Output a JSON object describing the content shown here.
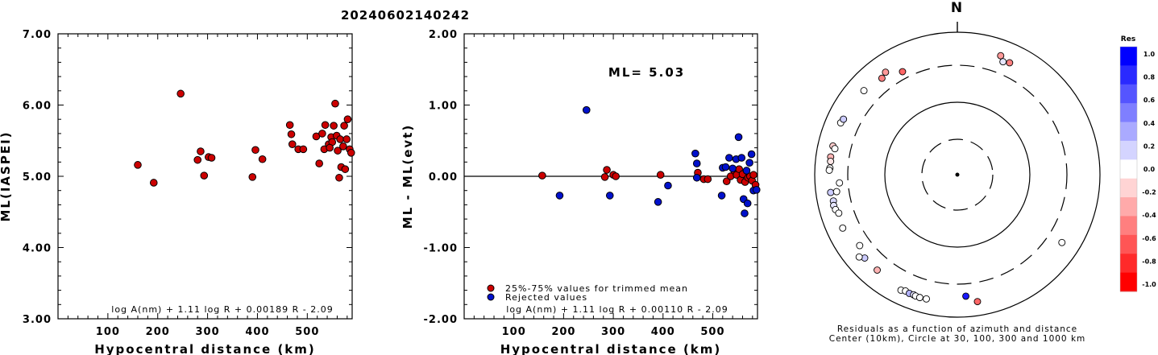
{
  "title": "20240602140242",
  "chart_data": [
    {
      "type": "scatter",
      "ylabel": "ML(IASPEI)",
      "xlabel": "Hypocentral distance (km)",
      "xlim": [
        0,
        590
      ],
      "ylim": [
        3.0,
        7.0
      ],
      "x_ticks": [
        100,
        200,
        300,
        400,
        500
      ],
      "y_ticks": [
        "3.00",
        "4.00",
        "5.00",
        "6.00",
        "7.00"
      ],
      "formula": "log A(nm) + 1.11 log R + 0.00189 R - 2.09",
      "series": [
        {
          "color": "#cc0000",
          "points": [
            [
              160,
              5.16
            ],
            [
              192,
              4.91
            ],
            [
              246,
              6.16
            ],
            [
              280,
              5.23
            ],
            [
              286,
              5.35
            ],
            [
              293,
              5.01
            ],
            [
              302,
              5.27
            ],
            [
              308,
              5.26
            ],
            [
              390,
              4.99
            ],
            [
              396,
              5.37
            ],
            [
              410,
              5.24
            ],
            [
              465,
              5.72
            ],
            [
              468,
              5.59
            ],
            [
              470,
              5.45
            ],
            [
              482,
              5.38
            ],
            [
              492,
              5.38
            ],
            [
              518,
              5.56
            ],
            [
              524,
              5.18
            ],
            [
              530,
              5.6
            ],
            [
              536,
              5.72
            ],
            [
              534,
              5.38
            ],
            [
              543,
              5.45
            ],
            [
              548,
              5.55
            ],
            [
              553,
              5.71
            ],
            [
              556,
              6.02
            ],
            [
              559,
              5.57
            ],
            [
              561,
              5.36
            ],
            [
              564,
              4.98
            ],
            [
              566,
              5.52
            ],
            [
              568,
              5.13
            ],
            [
              572,
              5.42
            ],
            [
              574,
              5.71
            ],
            [
              576,
              5.1
            ],
            [
              579,
              5.52
            ],
            [
              581,
              5.8
            ],
            [
              585,
              5.38
            ],
            [
              588,
              5.33
            ],
            [
              550,
              5.48
            ],
            [
              545,
              5.4
            ]
          ]
        }
      ]
    },
    {
      "type": "scatter",
      "ylabel": "ML - ML(evt)",
      "xlabel": "Hypocentral distance (km)",
      "xlim": [
        0,
        590
      ],
      "ylim": [
        -2.0,
        2.0
      ],
      "x_ticks": [
        100,
        200,
        300,
        400,
        500
      ],
      "y_ticks": [
        "-2.00",
        "-1.00",
        "0.00",
        "1.00",
        "2.00"
      ],
      "annotation": "ML= 5.03",
      "formula": "log A(nm) + 1.11 log R + 0.00110 R - 2.09",
      "series": [
        {
          "name": "25%-75% values for trimmed mean",
          "color": "#cc0000",
          "points": [
            [
              157,
              0.01
            ],
            [
              287,
              0.09
            ],
            [
              283,
              -0.01
            ],
            [
              300,
              0.02
            ],
            [
              305,
              0.0
            ],
            [
              395,
              0.02
            ],
            [
              470,
              0.05
            ],
            [
              482,
              -0.04
            ],
            [
              490,
              -0.04
            ],
            [
              528,
              -0.07
            ],
            [
              536,
              0.0
            ],
            [
              543,
              0.08
            ],
            [
              548,
              0.02
            ],
            [
              553,
              0.1
            ],
            [
              556,
              -0.05
            ],
            [
              560,
              0.03
            ],
            [
              565,
              -0.08
            ],
            [
              571,
              -0.02
            ],
            [
              575,
              0.0
            ],
            [
              579,
              -0.06
            ],
            [
              582,
              0.02
            ],
            [
              586,
              -0.12
            ]
          ]
        },
        {
          "name": "Rejected values",
          "color": "#0011cc",
          "points": [
            [
              246,
              0.93
            ],
            [
              192,
              -0.27
            ],
            [
              293,
              -0.27
            ],
            [
              390,
              -0.36
            ],
            [
              410,
              -0.13
            ],
            [
              465,
              0.32
            ],
            [
              468,
              0.18
            ],
            [
              468,
              -0.02
            ],
            [
              518,
              -0.27
            ],
            [
              520,
              0.12
            ],
            [
              526,
              0.13
            ],
            [
              533,
              0.26
            ],
            [
              540,
              0.11
            ],
            [
              547,
              0.24
            ],
            [
              552,
              0.55
            ],
            [
              558,
              0.26
            ],
            [
              562,
              -0.32
            ],
            [
              564,
              -0.52
            ],
            [
              568,
              0.08
            ],
            [
              570,
              -0.38
            ],
            [
              578,
              0.31
            ],
            [
              582,
              -0.2
            ],
            [
              588,
              -0.19
            ],
            [
              574,
              0.19
            ]
          ]
        }
      ]
    },
    {
      "type": "scatter",
      "subtype": "polar",
      "north_label": "N",
      "caption_line1": "Residuals as a function of azimuth and distance",
      "caption_line2": "Center (10km), Circle at 30, 100, 300 and 1000 km",
      "ring_radii_px": [],
      "colorbar": {
        "label": "Res",
        "ticks": [
          "1.0",
          "0.8",
          "0.6",
          "0.4",
          "0.2",
          "0.0",
          "-0.2",
          "-0.4",
          "-0.6",
          "-0.8",
          "-1.0"
        ],
        "colors": [
          "#0000ff",
          "#2a2aff",
          "#5555ff",
          "#7f7fff",
          "#aaaaff",
          "#d4d4ff",
          "#ffffff",
          "#ffd4d4",
          "#ffaaaa",
          "#ff7f7f",
          "#ff5555",
          "#ff2a2a",
          "#ff0000"
        ]
      },
      "points": [
        {
          "az": 20,
          "dist_km": 560,
          "res": -0.4
        },
        {
          "az": 22,
          "dist_km": 470,
          "res": 0.1
        },
        {
          "az": 25,
          "dist_km": 500,
          "res": -0.5
        },
        {
          "az": 332,
          "dist_km": 390,
          "res": -0.6
        },
        {
          "az": 322,
          "dist_km": 480,
          "res": -0.5
        },
        {
          "az": 325,
          "dist_km": 530,
          "res": -0.4
        },
        {
          "az": 312,
          "dist_km": 540,
          "res": 0.0
        },
        {
          "az": 294,
          "dist_km": 580,
          "res": 0.0
        },
        {
          "az": 296,
          "dist_km": 560,
          "res": 0.2
        },
        {
          "az": 283,
          "dist_km": 580,
          "res": -0.2
        },
        {
          "az": 278,
          "dist_km": 585,
          "res": -0.3
        },
        {
          "az": 276,
          "dist_km": 575,
          "res": -0.1
        },
        {
          "az": 273,
          "dist_km": 578,
          "res": 0.0
        },
        {
          "az": 272,
          "dist_km": 590,
          "res": 0.0
        },
        {
          "az": 282,
          "dist_km": 530,
          "res": 0.0
        },
        {
          "az": 262,
          "dist_km": 585,
          "res": 0.2
        },
        {
          "az": 258,
          "dist_km": 560,
          "res": 0.15
        },
        {
          "az": 256,
          "dist_km": 575,
          "res": 0.1
        },
        {
          "az": 254,
          "dist_km": 560,
          "res": 0.0
        },
        {
          "az": 252,
          "dist_km": 520,
          "res": 0.0
        },
        {
          "az": 262,
          "dist_km": 470,
          "res": 0.0
        },
        {
          "az": 266,
          "dist_km": 410,
          "res": 0.0
        },
        {
          "az": 245,
          "dist_km": 555,
          "res": 0.0
        },
        {
          "az": 234,
          "dist_km": 450,
          "res": 0.0
        },
        {
          "az": 228,
          "dist_km": 520,
          "res": 0.2
        },
        {
          "az": 220,
          "dist_km": 520,
          "res": -0.3
        },
        {
          "az": 206,
          "dist_km": 600,
          "res": 0.0
        },
        {
          "az": 204,
          "dist_km": 575,
          "res": 0.0
        },
        {
          "az": 202,
          "dist_km": 590,
          "res": 0.3
        },
        {
          "az": 200,
          "dist_km": 585,
          "res": 0.1
        },
        {
          "az": 199,
          "dist_km": 595,
          "res": 0.0
        },
        {
          "az": 197,
          "dist_km": 600,
          "res": 0.0
        },
        {
          "az": 194,
          "dist_km": 590,
          "res": 0.0
        },
        {
          "az": 176,
          "dist_km": 470,
          "res": 0.9
        },
        {
          "az": 171,
          "dist_km": 600,
          "res": -0.6
        },
        {
          "az": 123,
          "dist_km": 520,
          "res": 0.0
        },
        {
          "az": 230,
          "dist_km": 590,
          "res": 0.0
        }
      ]
    }
  ]
}
